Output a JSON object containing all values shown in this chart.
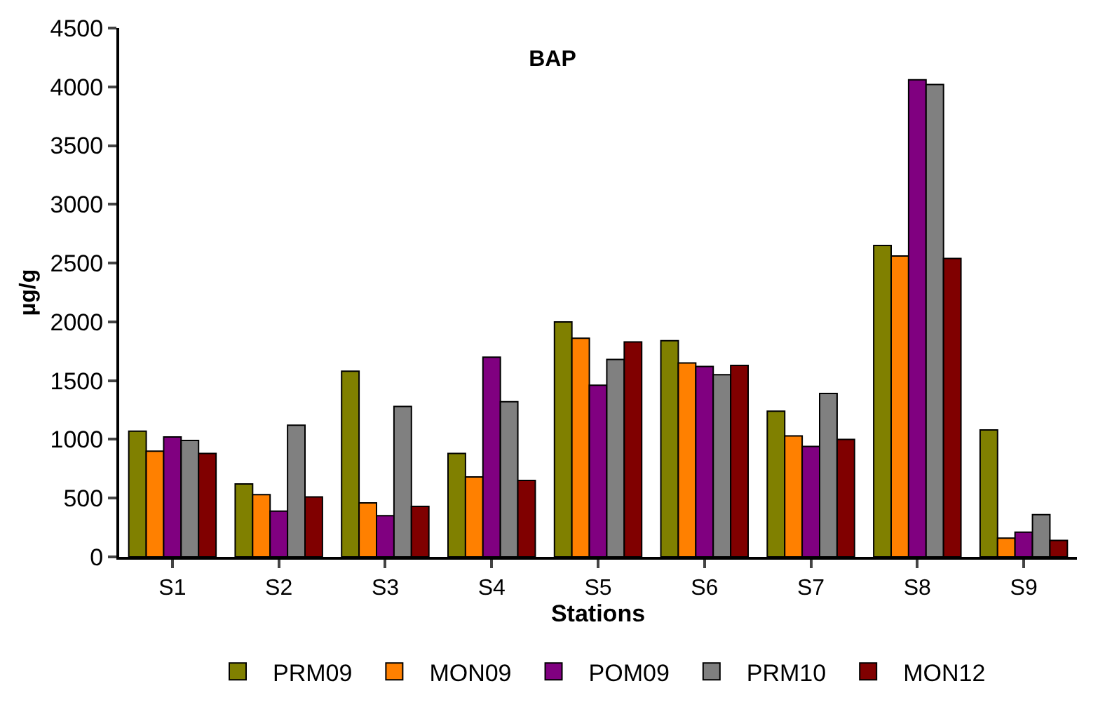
{
  "chart_data": {
    "type": "bar",
    "title": "BAP",
    "xlabel": "Stations",
    "ylabel": "µg/g",
    "categories": [
      "S1",
      "S2",
      "S3",
      "S4",
      "S5",
      "S6",
      "S7",
      "S8",
      "S9"
    ],
    "series": [
      {
        "name": "PRM09",
        "color": "#808000",
        "values": [
          1070,
          620,
          1580,
          880,
          2000,
          1840,
          1240,
          2650,
          1080
        ]
      },
      {
        "name": "MON09",
        "color": "#ff8000",
        "values": [
          900,
          530,
          460,
          680,
          1860,
          1650,
          1030,
          2560,
          160
        ]
      },
      {
        "name": "POM09",
        "color": "#800080",
        "values": [
          1020,
          390,
          350,
          1700,
          1460,
          1620,
          940,
          4060,
          210
        ]
      },
      {
        "name": "PRM10",
        "color": "#808080",
        "values": [
          990,
          1120,
          1280,
          1320,
          1680,
          1550,
          1390,
          4020,
          360
        ]
      },
      {
        "name": "MON12",
        "color": "#800000",
        "values": [
          880,
          510,
          430,
          650,
          1830,
          1630,
          1000,
          2540,
          140
        ]
      }
    ],
    "ylim": [
      0,
      4500
    ],
    "yticks": [
      0,
      500,
      1000,
      1500,
      2000,
      2500,
      3000,
      3500,
      4000,
      4500
    ],
    "grid": false,
    "legend": "bottom"
  }
}
